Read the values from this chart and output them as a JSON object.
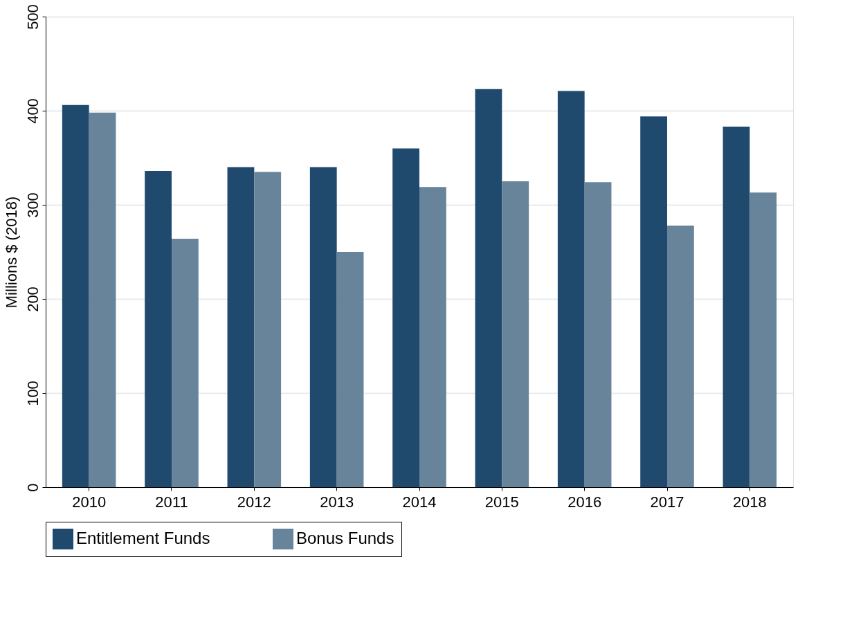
{
  "chart_data": {
    "type": "bar",
    "ylabel": "Millions $ (2018)",
    "categories": [
      "2010",
      "2011",
      "2012",
      "2013",
      "2014",
      "2015",
      "2016",
      "2017",
      "2018"
    ],
    "series": [
      {
        "name": "Entitlement Funds",
        "color": "#1f4a6e",
        "values": [
          406,
          336,
          340,
          340,
          360,
          423,
          421,
          394,
          383
        ]
      },
      {
        "name": "Bonus Funds",
        "color": "#68849a",
        "values": [
          398,
          264,
          335,
          250,
          319,
          325,
          324,
          278,
          313
        ]
      }
    ],
    "ylim": [
      0,
      500
    ],
    "yticks": [
      0,
      100,
      200,
      300,
      400,
      500
    ],
    "grid": "y",
    "legend": "bottom"
  }
}
